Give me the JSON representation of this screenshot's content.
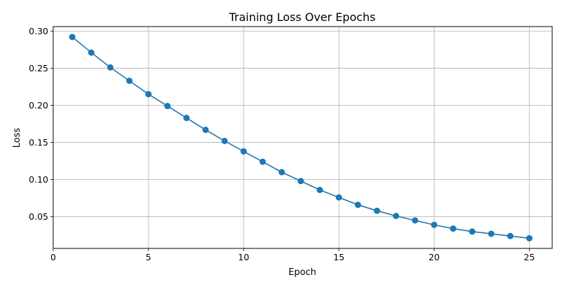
{
  "chart_data": {
    "type": "line",
    "title": "Training Loss Over Epochs",
    "xlabel": "Epoch",
    "ylabel": "Loss",
    "xlim": [
      0,
      26.2
    ],
    "ylim": [
      0.0073,
      0.306
    ],
    "xticks": [
      0,
      5,
      10,
      15,
      20,
      25
    ],
    "yticks": [
      0.05,
      0.1,
      0.15,
      0.2,
      0.25,
      0.3
    ],
    "xtick_labels": [
      "0",
      "5",
      "10",
      "15",
      "20",
      "25"
    ],
    "ytick_labels": [
      "0.05",
      "0.10",
      "0.15",
      "0.20",
      "0.25",
      "0.30"
    ],
    "grid": true,
    "legend": false,
    "series": [
      {
        "color": "#1f77b4",
        "marker": "circle",
        "x": [
          1,
          2,
          3,
          4,
          5,
          6,
          7,
          8,
          9,
          10,
          11,
          12,
          13,
          14,
          15,
          16,
          17,
          18,
          19,
          20,
          21,
          22,
          23,
          24,
          25
        ],
        "y": [
          0.292,
          0.271,
          0.251,
          0.233,
          0.215,
          0.199,
          0.183,
          0.167,
          0.152,
          0.138,
          0.124,
          0.11,
          0.098,
          0.086,
          0.076,
          0.066,
          0.058,
          0.051,
          0.045,
          0.039,
          0.034,
          0.03,
          0.027,
          0.024,
          0.021
        ]
      }
    ]
  }
}
